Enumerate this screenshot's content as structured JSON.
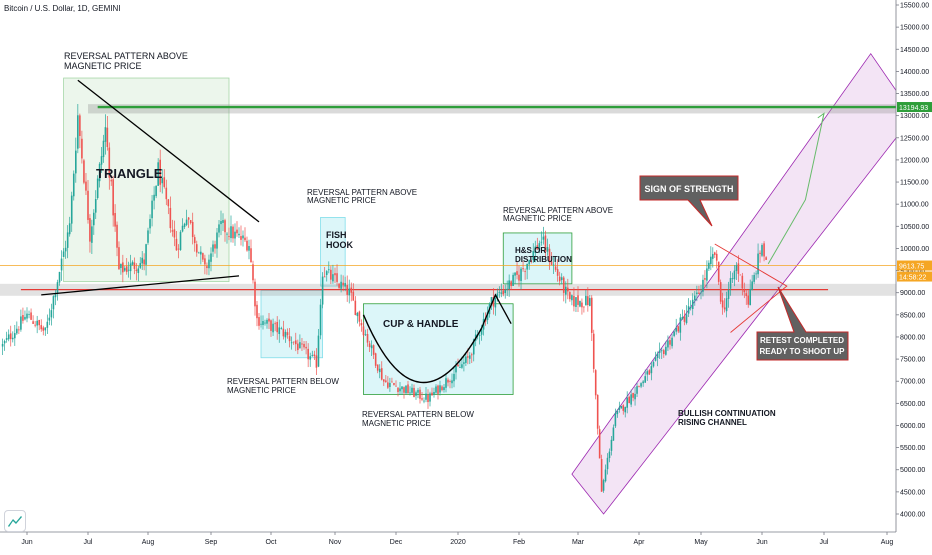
{
  "header": {
    "symbol": "Bitcoin / U.S. Dollar, 1D, GEMINI"
  },
  "colors": {
    "up": "#26a69a",
    "down": "#ef5350",
    "price_line": "#f5a623",
    "resistance": "#2e9e3a",
    "support": "#e53935",
    "channel": "#9c27b0"
  },
  "icons": {
    "logo": "tradingview-logo-icon"
  },
  "chart_data": {
    "type": "candlestick",
    "title": "Bitcoin / U.S. Dollar, 1D, GEMINI",
    "ylim": [
      3800,
      15700
    ],
    "y_ticks": [
      "15500.00",
      "15000.00",
      "14500.00",
      "14000.00",
      "13500.00",
      "13000.00",
      "12500.00",
      "12000.00",
      "11500.00",
      "11000.00",
      "10500.00",
      "10000.00",
      "9500.00",
      "9000.00",
      "8500.00",
      "8000.00",
      "7500.00",
      "7000.00",
      "6500.00",
      "6000.00",
      "5500.00",
      "5000.00",
      "4500.00",
      "4000.00"
    ],
    "x_ticks": [
      "Jun",
      "Jul",
      "Aug",
      "Sep",
      "Oct",
      "Nov",
      "Dec",
      "2020",
      "Feb",
      "Mar",
      "Apr",
      "May",
      "Jun",
      "Jul",
      "Aug"
    ],
    "price_labels": {
      "current": "9613.75",
      "countdown": "14:58:22",
      "resistance": "13194.93"
    },
    "levels": {
      "resistance": 13194.93,
      "support": 9070,
      "current": 9613.75
    },
    "path": [
      [
        "2019-05-20",
        7800
      ],
      [
        "2019-06-01",
        8500
      ],
      [
        "2019-06-10",
        8100
      ],
      [
        "2019-06-22",
        10500
      ],
      [
        "2019-06-26",
        13000
      ],
      [
        "2019-07-02",
        10300
      ],
      [
        "2019-07-10",
        12700
      ],
      [
        "2019-07-17",
        9500
      ],
      [
        "2019-07-30",
        9700
      ],
      [
        "2019-08-06",
        11800
      ],
      [
        "2019-08-15",
        10000
      ],
      [
        "2019-08-20",
        10800
      ],
      [
        "2019-08-29",
        9500
      ],
      [
        "2019-09-06",
        10500
      ],
      [
        "2019-09-20",
        10100
      ],
      [
        "2019-09-24",
        8400
      ],
      [
        "2019-10-07",
        8100
      ],
      [
        "2019-10-23",
        7400
      ],
      [
        "2019-10-26",
        9500
      ],
      [
        "2019-11-08",
        9000
      ],
      [
        "2019-11-25",
        7000
      ],
      [
        "2019-12-17",
        6600
      ],
      [
        "2020-01-06",
        7500
      ],
      [
        "2020-01-18",
        8800
      ],
      [
        "2020-02-01",
        9400
      ],
      [
        "2020-02-12",
        10200
      ],
      [
        "2020-02-26",
        8800
      ],
      [
        "2020-03-07",
        8800
      ],
      [
        "2020-03-12",
        5200
      ],
      [
        "2020-03-13",
        4500
      ],
      [
        "2020-03-20",
        6200
      ],
      [
        "2020-04-06",
        7200
      ],
      [
        "2020-04-29",
        8900
      ],
      [
        "2020-05-08",
        9900
      ],
      [
        "2020-05-12",
        8600
      ],
      [
        "2020-05-19",
        9600
      ],
      [
        "2020-05-25",
        8800
      ],
      [
        "2020-06-01",
        10100
      ],
      [
        "2020-06-03",
        9613.75
      ]
    ],
    "annotations": [
      "REVERSAL PATTERN ABOVE",
      "MAGNETIC PRICE",
      "TRIANGLE",
      "REVERSAL PATTERN ABOVE",
      "MAGNETIC PRICE",
      "FISH",
      "HOOK",
      "REVERSAL PATTERN ABOVE",
      "MAGNETIC PRICE",
      "H&S OR",
      "DISTRIBUTION",
      "CUP & HANDLE",
      "REVERSAL PATTERN BELOW",
      "MAGNETIC PRICE",
      "REVERSAL PATTERN BELOW",
      "MAGNETIC PRICE",
      "SIGN OF STRENGTH",
      "RETEST COMPLETED",
      "READY TO SHOOT UP",
      "BULLISH CONTINUATION",
      "RISING CHANNEL"
    ]
  }
}
